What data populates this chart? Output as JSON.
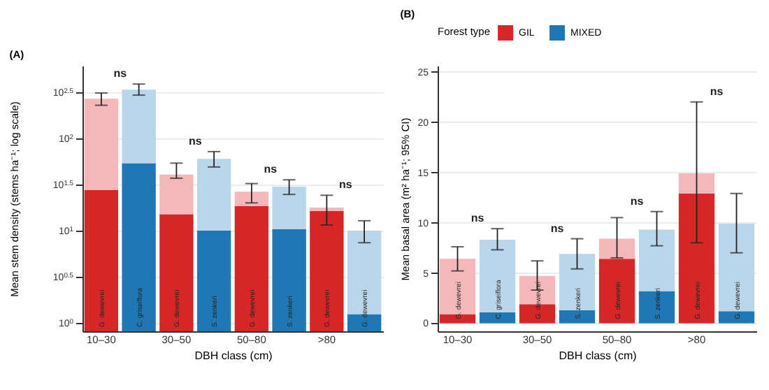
{
  "chart_data": [
    {
      "type": "bar",
      "title": "(A)",
      "xlabel": "DBH class (cm)",
      "ylabel": "Mean stem density (stems ha⁻¹; log scale)",
      "grid": "y",
      "log": true,
      "stacked": true,
      "categories": [
        "10–30",
        null,
        "30–50",
        null,
        "50–80",
        null,
        ">80",
        null
      ],
      "ylim": [
        0.81,
        615
      ],
      "yticks": [
        {
          "value": 1,
          "label": "10$^{0}$"
        },
        {
          "value": 3.162,
          "label": "10$^{0.5}$"
        },
        {
          "value": 10,
          "label": "10$^{1}$"
        },
        {
          "value": 31.62,
          "label": "10$^{1.5}$"
        },
        {
          "value": 100,
          "label": "10$^{2}$"
        },
        {
          "value": 316.2,
          "label": "10$^{2.5}$"
        }
      ],
      "series": [
        {
          "color": "#d62728",
          "values": [
            27.5,
            null,
            15.1,
            null,
            18.5,
            null,
            16.3,
            null
          ],
          "value_labels": [
            "G. dewevrei",
            null,
            "G. dewevrei",
            null,
            "G. dewevrei",
            null,
            "G. dewevrei",
            null
          ]
        },
        {
          "color": "#f4b8ba",
          "values": [
            242.5,
            null,
            25.5,
            null,
            8,
            null,
            1.5,
            null
          ],
          "errors": [
            [
              229,
              311
            ],
            null,
            [
              37,
              54
            ],
            null,
            [
              20,
              32.4
            ],
            null,
            [
              11.5,
              24.2
            ],
            null
          ]
        },
        {
          "color": "#1f77b4",
          "values": [
            null,
            54,
            null,
            10,
            null,
            10.4,
            null,
            1.24
          ],
          "value_labels": [
            null,
            "C. griseiflora",
            null,
            "S. zenkeri",
            null,
            "S. zenkeri",
            null,
            "G. dewevrei"
          ]
        },
        {
          "color": "#bad6eb",
          "values": [
            null,
            285,
            null,
            50,
            null,
            19.6,
            null,
            8.76
          ],
          "errors": [
            null,
            [
              295,
              389
            ],
            null,
            [
              49,
              72
            ],
            null,
            [
              24.7,
              35.6
            ],
            null,
            [
              7.4,
              12.8
            ]
          ]
        }
      ],
      "annotations": [
        "ns",
        "ns",
        "ns",
        "ns"
      ]
    },
    {
      "type": "bar",
      "title": "(B)",
      "xlabel": "DBH class (cm)",
      "ylabel": "Mean basal area (m² ha⁻¹; 95% CI)",
      "legend_title": "Forest type",
      "legend": "top",
      "grid": "y",
      "stacked": true,
      "categories": [
        "10–30",
        null,
        "30–50",
        null,
        "50–80",
        null,
        ">80",
        null
      ],
      "ylim": [
        -0.8,
        25.6
      ],
      "yticks": [
        0,
        5,
        10,
        15,
        20,
        25
      ],
      "series": [
        {
          "name": "GIL",
          "color": "#d62728",
          "values": [
            0.9,
            null,
            1.9,
            null,
            6.4,
            null,
            12.9,
            null
          ],
          "value_labels": [
            "G. dewevrei",
            null,
            "G. dewevrei",
            null,
            "G. dewevrei",
            null,
            "G. dewevrei",
            null
          ]
        },
        {
          "color": "#f4b8ba",
          "values": [
            5.5,
            null,
            2.8,
            null,
            2,
            null,
            2,
            null
          ],
          "errors": [
            [
              5.2,
              7.6
            ],
            null,
            [
              3.3,
              6.2
            ],
            null,
            [
              6.5,
              10.5
            ],
            null,
            [
              8,
              22
            ],
            null
          ]
        },
        {
          "name": "MIXED",
          "color": "#1f77b4",
          "values": [
            null,
            1.1,
            null,
            1.3,
            null,
            3.2,
            null,
            1.2
          ],
          "value_labels": [
            null,
            "C. griseiflora",
            null,
            "S. zenkeri",
            null,
            "S. zenkeri",
            null,
            "G. dewevrei"
          ]
        },
        {
          "color": "#bad6eb",
          "values": [
            null,
            7.2,
            null,
            5.6,
            null,
            6.1,
            null,
            8.7
          ],
          "errors": [
            null,
            [
              7.3,
              9.4
            ],
            null,
            [
              5.4,
              8.4
            ],
            null,
            [
              7.7,
              11.1
            ],
            null,
            [
              7,
              12.9
            ]
          ]
        }
      ],
      "annotations": [
        "ns",
        "ns",
        "ns",
        "ns"
      ]
    }
  ]
}
